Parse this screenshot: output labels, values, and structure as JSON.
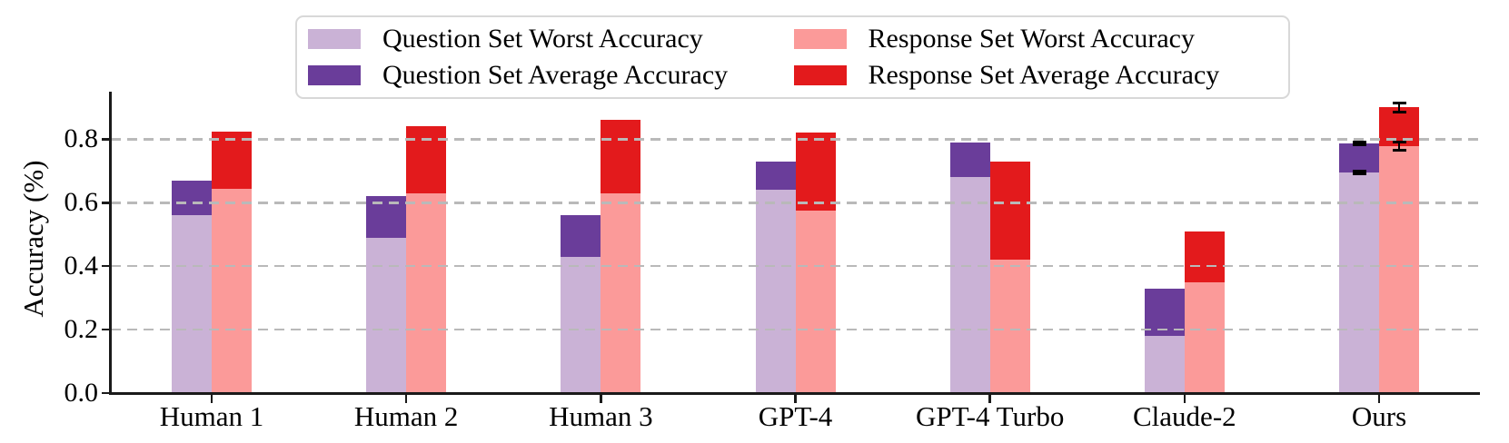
{
  "chart_data": {
    "type": "bar",
    "title": "",
    "ylabel": "Accuracy (%)",
    "categories": [
      "Human 1",
      "Human 2",
      "Human 3",
      "GPT-4",
      "GPT-4 Turbo",
      "Claude-2",
      "Ours"
    ],
    "series": [
      {
        "name": "Question Set Worst Accuracy",
        "color": "#cab2d6",
        "group": "question",
        "kind": "worst",
        "values": [
          0.56,
          0.49,
          0.43,
          0.64,
          0.68,
          0.18,
          0.695
        ]
      },
      {
        "name": "Question Set Average Accuracy",
        "color": "#6a3d9a",
        "group": "question",
        "kind": "average",
        "values": [
          0.67,
          0.62,
          0.56,
          0.73,
          0.79,
          0.33,
          0.787
        ]
      },
      {
        "name": "Response Set Worst Accuracy",
        "color": "#fb9a99",
        "group": "response",
        "kind": "worst",
        "values": [
          0.645,
          0.63,
          0.63,
          0.575,
          0.42,
          0.35,
          0.778
        ]
      },
      {
        "name": "Response Set Average Accuracy",
        "color": "#e31a1c",
        "group": "response",
        "kind": "average",
        "values": [
          0.825,
          0.84,
          0.86,
          0.82,
          0.73,
          0.51,
          0.9
        ]
      }
    ],
    "bar_structure": "Per category two bars: question (left) and response (right). Worst accuracy drawn from 0; average accuracy drawn as darker segment stacked from worst value up to average value.",
    "error_bars": [
      {
        "category": "Ours",
        "series": "Question Set Worst Accuracy",
        "value": 0.695,
        "delta": 0.005
      },
      {
        "category": "Ours",
        "series": "Question Set Average Accuracy",
        "value": 0.787,
        "delta": 0.005
      },
      {
        "category": "Ours",
        "series": "Response Set Worst Accuracy",
        "value": 0.778,
        "delta": 0.012
      },
      {
        "category": "Ours",
        "series": "Response Set Average Accuracy",
        "value": 0.9,
        "delta": 0.013
      }
    ],
    "yticks": [
      "0.0",
      "0.2",
      "0.4",
      "0.6",
      "0.8"
    ],
    "ylim": [
      0,
      0.95
    ],
    "grid": {
      "axis": "y",
      "style": "dashed",
      "color": "#b9b9b9"
    },
    "legend_position": "top",
    "legend_border_color": "#d8d8d8",
    "axis_color": "#1a1a1a"
  }
}
